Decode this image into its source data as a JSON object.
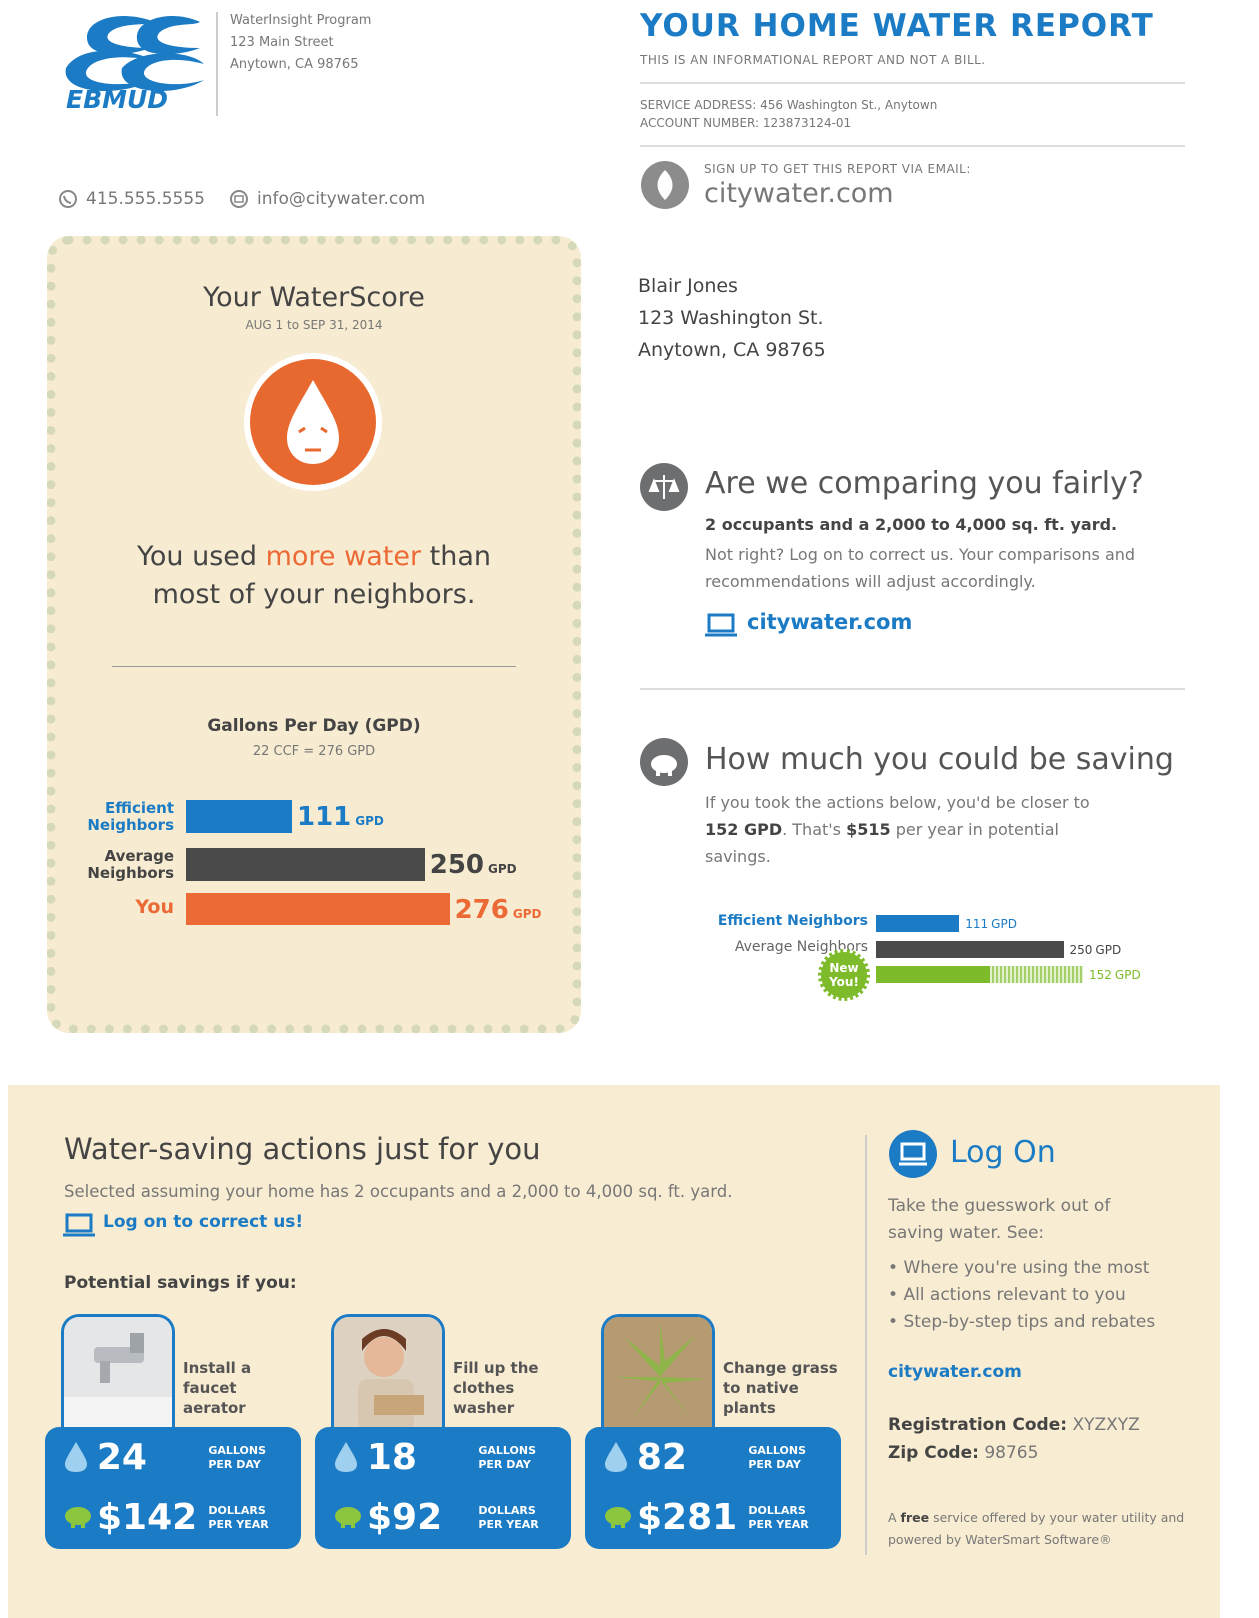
{
  "header": {
    "logo_text": "EBMUD",
    "program": "WaterInsight Program",
    "street": "123 Main Street",
    "city": "Anytown, CA 98765",
    "phone": "415.555.5555",
    "email": "info@citywater.com"
  },
  "report": {
    "title": "YOUR HOME WATER REPORT",
    "subtitle": "THIS IS AN INFORMATIONAL REPORT AND NOT A BILL.",
    "service_address": "SERVICE ADDRESS: 456 Washington St., Anytown",
    "account_number": "ACCOUNT NUMBER: 123873124-01",
    "signup_label": "SIGN UP TO GET THIS REPORT VIA EMAIL:",
    "signup_link": "citywater.com"
  },
  "recipient": {
    "name": "Blair Jones",
    "street": "123 Washington St.",
    "city": "Anytown, CA 98765"
  },
  "score": {
    "title": "Your WaterScore",
    "period": "AUG 1 to SEP 31, 2014",
    "message": [
      {
        "text": "You used "
      },
      {
        "text": "more water",
        "highlight": true
      },
      {
        "text": " than most of your neighbors."
      }
    ],
    "chart": {
      "title": "Gallons Per Day (GPD)",
      "subtitle": "22 CCF = 276 GPD",
      "unit": "GPD",
      "bars": [
        {
          "label": "Efficient Neighbors",
          "value": 111,
          "color": "#1b7bc4"
        },
        {
          "label": "Average Neighbors",
          "value": 250,
          "color": "#4a4a4a"
        },
        {
          "label": "You",
          "value": 276,
          "color": "#ec6a35"
        }
      ]
    }
  },
  "fairness": {
    "title": "Are we comparing you fairly?",
    "profile": "2 occupants and a 2,000 to 4,000 sq. ft. yard.",
    "text": "Not right? Log on to correct us. Your comparisons and recommendations will adjust accordingly.",
    "link": "citywater.com"
  },
  "savings": {
    "title": "How much you could be saving",
    "text": [
      {
        "text": "If you took the actions below, you'd be closer to "
      },
      {
        "text": "152 GPD",
        "bold": true
      },
      {
        "text": ". That's "
      },
      {
        "text": "$515",
        "bold": true
      },
      {
        "text": " per year in potential savings."
      }
    ],
    "chart": {
      "unit": "GPD",
      "bars": [
        {
          "label": "Efficient Neighbors",
          "value": 111,
          "color": "#1b7bc4"
        },
        {
          "label": "Average Neighbors",
          "value": 250,
          "color": "#4a4a4a"
        },
        {
          "label": "New You!",
          "value": 152,
          "color": "#7dbb2a"
        }
      ]
    }
  },
  "actions": {
    "title": "Water-saving actions just for you",
    "subtitle": "Selected assuming your home has 2 occupants and a 2,000 to 4,000 sq. ft. yard.",
    "link": "Log on to correct us!",
    "potential_label": "Potential savings if you:",
    "gallons_unit": "GALLONS PER DAY",
    "dollars_unit": "DOLLARS PER YEAR",
    "items": [
      {
        "label": "Install a faucet aerator",
        "gallons": 24,
        "dollars": "$142"
      },
      {
        "label": "Fill up the clothes washer",
        "gallons": 18,
        "dollars": "$92"
      },
      {
        "label": "Change grass to native plants",
        "gallons": 82,
        "dollars": "$281"
      }
    ]
  },
  "logon": {
    "title": "Log On",
    "intro": "Take the guesswork out of saving water. See:",
    "bullets": [
      "Where you're using the most",
      "All actions relevant to you",
      "Step-by-step tips and rebates"
    ],
    "link": "citywater.com",
    "registration_label": "Registration Code:",
    "registration_code": "XYZXYZ",
    "zip_label": "Zip Code:",
    "zip_code": "98765",
    "footer": [
      {
        "text": "A "
      },
      {
        "text": "free",
        "bold": true
      },
      {
        "text": " service offered by your water utility and powered by WaterSmart Software®"
      }
    ]
  }
}
